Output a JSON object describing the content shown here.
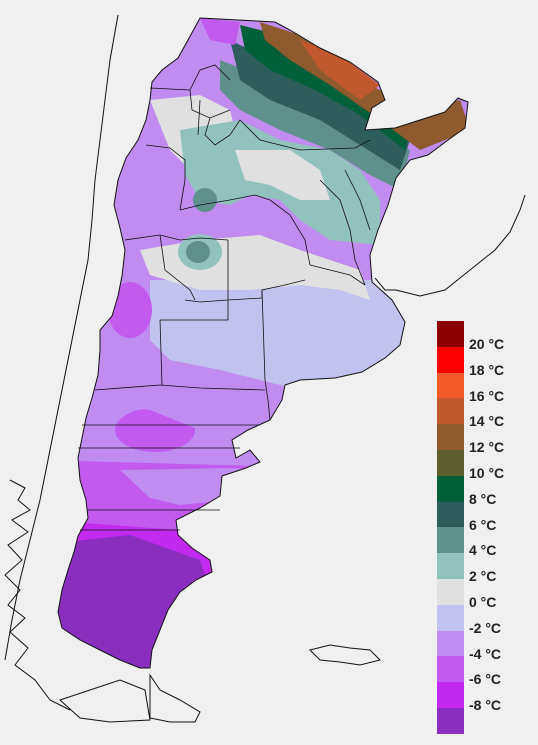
{
  "legend": {
    "items": [
      {
        "label": "20 °C",
        "color": "#8b0000",
        "top_color": "#7a0000"
      },
      {
        "label": "18 °C",
        "color": "#ff0000",
        "top_color": "#8b0000"
      },
      {
        "label": "16 °C",
        "color": "#f05a2a",
        "top_color": "#ff0000"
      },
      {
        "label": "14 °C",
        "color": "#c2582e",
        "top_color": "#f05a2a"
      },
      {
        "label": "12 °C",
        "color": "#8e5a2e",
        "top_color": "#c2582e"
      },
      {
        "label": "10 °C",
        "color": "#5e5e2e",
        "top_color": "#8e5a2e"
      },
      {
        "label": "8 °C",
        "color": "#00603a",
        "top_color": "#5e5e2e"
      },
      {
        "label": "6 °C",
        "color": "#2e5e5c",
        "top_color": "#00603a"
      },
      {
        "label": "4 °C",
        "color": "#5e908c",
        "top_color": "#2e5e5c"
      },
      {
        "label": "2 °C",
        "color": "#92c2be",
        "top_color": "#5e908c"
      },
      {
        "label": "0 °C",
        "color": "#e0e0e0",
        "top_color": "#92c2be"
      },
      {
        "label": "-2 °C",
        "color": "#c2c2f0",
        "top_color": "#e0e0e0"
      },
      {
        "label": "-4 °C",
        "color": "#c08cf0",
        "top_color": "#c2c2f0"
      },
      {
        "label": "-6 °C",
        "color": "#c25af0",
        "top_color": "#c08cf0"
      },
      {
        "label": "-8 °C",
        "color": "#c22af0",
        "top_color": "#c25af0"
      },
      {
        "label": "",
        "color": "#8a2ec0",
        "top_color": "#c22af0"
      }
    ]
  }
}
